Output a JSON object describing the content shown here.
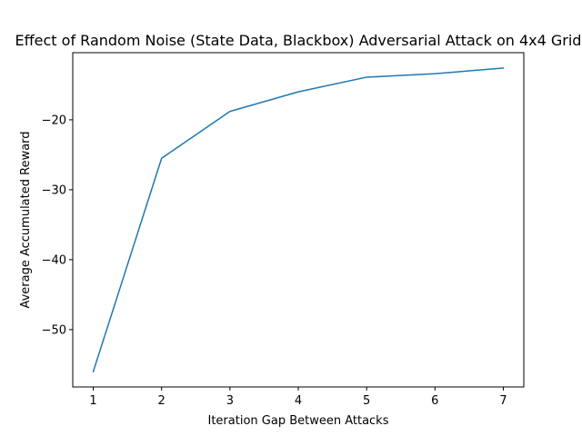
{
  "chart_data": {
    "type": "line",
    "title": "Effect of Random Noise (State Data, Blackbox) Adversarial Attack on 4x4 Grid",
    "xlabel": "Iteration Gap Between Attacks",
    "ylabel": "Average Accumulated Reward",
    "x": [
      1,
      2,
      3,
      4,
      5,
      6,
      7
    ],
    "series": [
      {
        "values": [
          -56.0,
          -25.5,
          -18.8,
          -16.0,
          -13.9,
          -13.4,
          -12.6
        ],
        "color": "#1f77b4"
      }
    ],
    "xlim": [
      0.7,
      7.3
    ],
    "ylim": [
      -58.2,
      -10.4
    ],
    "xticks": [
      1,
      2,
      3,
      4,
      5,
      6,
      7
    ],
    "xtick_labels": [
      "1",
      "2",
      "3",
      "4",
      "5",
      "6",
      "7"
    ],
    "yticks": [
      -50,
      -40,
      -30,
      -20
    ],
    "ytick_labels": [
      "−50",
      "−40",
      "−30",
      "−20"
    ],
    "grid": false,
    "legend": "none"
  }
}
